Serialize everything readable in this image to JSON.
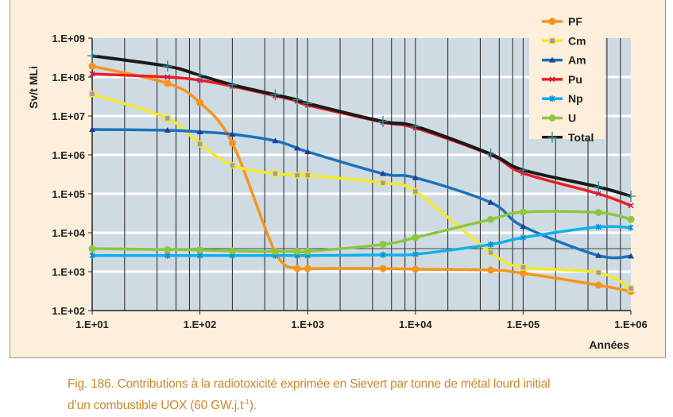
{
  "chart_data": {
    "type": "line",
    "xlabel": "Années",
    "ylabel": "Sv/t MLi",
    "x_scale": "log",
    "y_scale": "log",
    "xlim": [
      10,
      1000000
    ],
    "ylim": [
      100,
      1000000000
    ],
    "x_ticks": [
      "1.E+01",
      "1.E+02",
      "1.E+03",
      "1.E+04",
      "1.E+05",
      "1.E+06"
    ],
    "y_ticks": [
      "1.E+09",
      "1.E+08",
      "1.E+07",
      "1.E+06",
      "1.E+05",
      "1.E+04",
      "1.E+03",
      "1.E+02"
    ],
    "grid": true,
    "legend_position": "top-right",
    "horizontal_reference": 3900,
    "x": [
      10,
      50,
      100,
      200,
      500,
      800,
      1000,
      5000,
      10000,
      50000,
      100000,
      500000,
      1000000
    ],
    "series": [
      {
        "name": "PF",
        "color": "#f7941d",
        "marker": "circle",
        "values": [
          190000000,
          69000000,
          22000000,
          2000000,
          3200,
          1200,
          1200,
          1200,
          1150,
          1100,
          910,
          450,
          310
        ]
      },
      {
        "name": "Cm",
        "color": "#f2ea2a",
        "marker": "square",
        "values": [
          37000000,
          8700000,
          1900000,
          540000,
          330000,
          300000,
          300000,
          190000,
          115000,
          3100,
          1300,
          950,
          370
        ]
      },
      {
        "name": "Am",
        "color": "#1a72bb",
        "marker": "triangle",
        "values": [
          4500000,
          4300000,
          3900000,
          3400000,
          2300000,
          1500000,
          1200000,
          330000,
          260000,
          60000,
          14500,
          2600,
          2500
        ]
      },
      {
        "name": "Pu",
        "color": "#ee1c25",
        "marker": "x",
        "values": [
          120000000,
          100000000,
          83000000,
          58000000,
          33000000,
          24000000,
          19000000,
          6900000,
          4900000,
          1000000,
          340000,
          100000,
          50000
        ]
      },
      {
        "name": "Np",
        "color": "#0fb0ec",
        "marker": "star",
        "values": [
          2600,
          2600,
          2600,
          2600,
          2600,
          2600,
          2600,
          2700,
          2800,
          5000,
          7500,
          14000,
          13500
        ]
      },
      {
        "name": "U",
        "color": "#8dc63f",
        "marker": "circle",
        "values": [
          3900,
          3700,
          3600,
          3400,
          3300,
          3300,
          3300,
          5000,
          7500,
          22000,
          34000,
          33000,
          22000
        ]
      },
      {
        "name": "Total",
        "color": "#1a1a1a",
        "marker": "plus",
        "values": [
          350000000,
          190000000,
          110000000,
          63000000,
          35000000,
          26000000,
          21000000,
          7200000,
          5400000,
          1050000,
          410000,
          150000,
          87000
        ]
      }
    ]
  },
  "caption": {
    "line1": "Fig. 186. Contributions à la radiotoxicité exprimée en Sievert par tonne de métal lourd initial",
    "line2_pre": "d’un combustible UOX (60 GW.j.t",
    "line2_sup": "-1",
    "line2_post": ")."
  },
  "colors": {
    "plot_background": "#cfdbe3",
    "panel_background": "#fdefdc",
    "caption": "#c8882c"
  }
}
